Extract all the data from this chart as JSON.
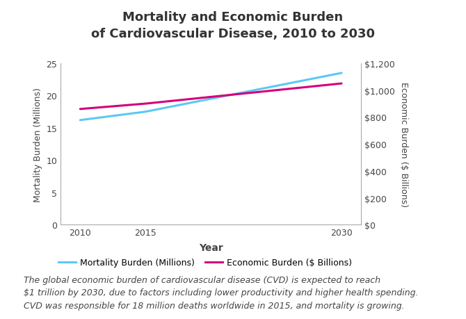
{
  "title": "Mortality and Economic Burden\nof Cardiovascular Disease, 2010 to 2030",
  "years": [
    2010,
    2015,
    2030
  ],
  "mortality": [
    16.2,
    17.5,
    23.5
  ],
  "economic": [
    860,
    900,
    1050
  ],
  "mortality_color": "#5BC8F5",
  "economic_color": "#D4007A",
  "left_ylabel": "Mortality Burden (Millions)",
  "right_ylabel": "Economic Burden ($ Billions)",
  "xlabel": "Year",
  "left_ylim": [
    0,
    25
  ],
  "right_ylim": [
    0,
    1200
  ],
  "left_yticks": [
    0,
    5,
    10,
    15,
    20,
    25
  ],
  "right_yticks": [
    0,
    200,
    400,
    600,
    800,
    1000,
    1200
  ],
  "right_yticklabels": [
    "$0",
    "$200",
    "$400",
    "$600",
    "$800",
    "$1,000",
    "$1,200"
  ],
  "legend_mortality": "Mortality Burden (Millions)",
  "legend_economic": "Economic Burden ($ Billions)",
  "annotation_line1": "The global economic burden of cardiovascular disease (CVD) is expected to reach",
  "annotation_line2": "$1 trillion by 2030, due to factors including lower productivity and higher health spending.",
  "annotation_line3": "CVD was responsible for 18 million deaths worldwide in 2015, and mortality is growing.",
  "line_width": 2.2,
  "background_color": "#ffffff",
  "title_fontsize": 13,
  "axis_label_fontsize": 9,
  "tick_fontsize": 9,
  "legend_fontsize": 9,
  "annotation_fontsize": 9,
  "spine_color": "#aaaaaa",
  "text_color": "#444444",
  "xlabel_fontsize": 10
}
